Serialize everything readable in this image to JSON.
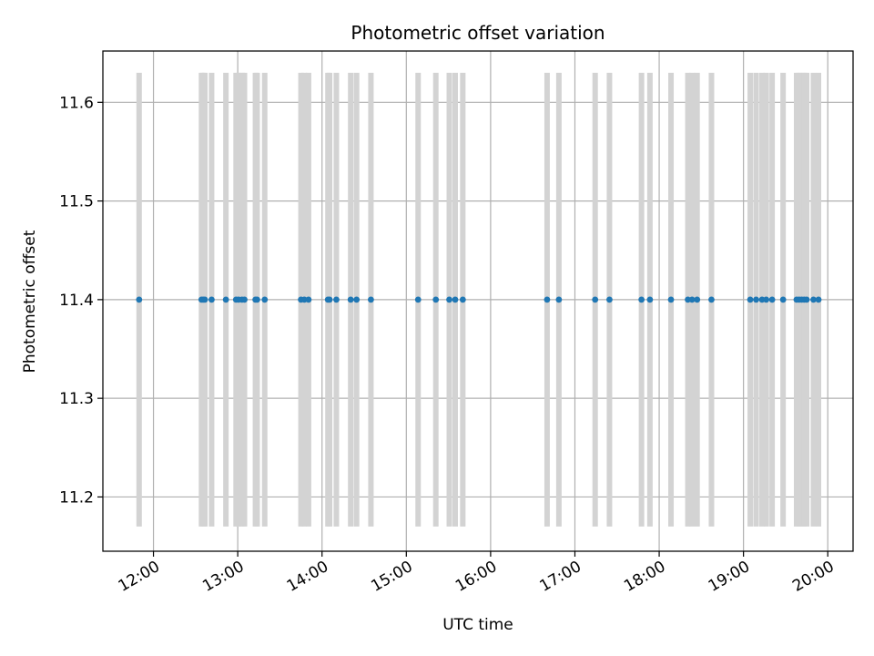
{
  "chart_data": {
    "type": "scatter",
    "title": "Photometric offset variation",
    "xlabel": "UTC time",
    "ylabel": "Photometric offset",
    "x_unit": "hours UTC",
    "xlim": [
      11.4,
      20.3
    ],
    "ylim": [
      11.145,
      11.652
    ],
    "grid": true,
    "xticks": [
      {
        "value": 12,
        "label": "12:00"
      },
      {
        "value": 13,
        "label": "13:00"
      },
      {
        "value": 14,
        "label": "14:00"
      },
      {
        "value": 15,
        "label": "15:00"
      },
      {
        "value": 16,
        "label": "16:00"
      },
      {
        "value": 17,
        "label": "17:00"
      },
      {
        "value": 18,
        "label": "18:00"
      },
      {
        "value": 19,
        "label": "19:00"
      },
      {
        "value": 20,
        "label": "20:00"
      }
    ],
    "yticks": [
      {
        "value": 11.2,
        "label": "11.2"
      },
      {
        "value": 11.3,
        "label": "11.3"
      },
      {
        "value": 11.4,
        "label": "11.4"
      },
      {
        "value": 11.5,
        "label": "11.5"
      },
      {
        "value": 11.6,
        "label": "11.6"
      }
    ],
    "error_bar_range": [
      11.17,
      11.63
    ],
    "colors": {
      "points": "#1f77b4",
      "error_bars": "#d3d3d3",
      "grid": "#b0b0b0"
    },
    "points": {
      "x": [
        11.83,
        12.57,
        12.59,
        12.61,
        12.69,
        12.86,
        12.98,
        13.01,
        13.05,
        13.08,
        13.21,
        13.23,
        13.32,
        13.75,
        13.79,
        13.84,
        14.07,
        14.09,
        14.17,
        14.34,
        14.41,
        14.58,
        15.14,
        15.35,
        15.51,
        15.58,
        15.67,
        16.67,
        16.81,
        17.24,
        17.41,
        17.79,
        17.89,
        18.14,
        18.34,
        18.39,
        18.45,
        18.62,
        19.08,
        19.15,
        19.22,
        19.27,
        19.34,
        19.47,
        19.63,
        19.66,
        19.69,
        19.72,
        19.75,
        19.83,
        19.89
      ],
      "y": [
        11.4,
        11.4,
        11.4,
        11.4,
        11.4,
        11.4,
        11.4,
        11.4,
        11.4,
        11.4,
        11.4,
        11.4,
        11.4,
        11.4,
        11.4,
        11.4,
        11.4,
        11.4,
        11.4,
        11.4,
        11.4,
        11.4,
        11.4,
        11.4,
        11.4,
        11.4,
        11.4,
        11.4,
        11.4,
        11.4,
        11.4,
        11.4,
        11.4,
        11.4,
        11.4,
        11.4,
        11.4,
        11.4,
        11.4,
        11.4,
        11.4,
        11.4,
        11.4,
        11.4,
        11.4,
        11.4,
        11.4,
        11.4,
        11.4,
        11.4,
        11.4
      ]
    }
  }
}
